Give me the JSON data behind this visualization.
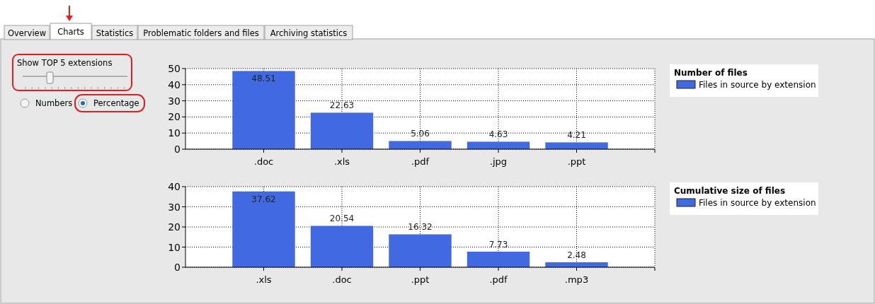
{
  "chart_data": [
    {
      "type": "other",
      "annotations": [
        "Overview",
        "Charts",
        "Statistics",
        "Problematic folders and files",
        "Archiving statistics",
        "Show TOP 5 extensions",
        "Numbers",
        "Percentage"
      ]
    },
    {
      "type": "bar",
      "legend_title": "Number of files",
      "categories": [
        ".doc",
        ".xls",
        ".pdf",
        ".jpg",
        ".ppt"
      ],
      "series": [
        {
          "name": "Files in source by extension",
          "color": "#4169e1",
          "values": [
            48.51,
            22.63,
            5.06,
            4.63,
            4.21
          ]
        }
      ],
      "ylim": [
        0,
        50
      ],
      "yticks": [
        0,
        10,
        20,
        30,
        40,
        50
      ],
      "grid": true,
      "legend": "right",
      "data_labels": true
    },
    {
      "type": "bar",
      "legend_title": "Cumulative size of files",
      "categories": [
        ".xls",
        ".doc",
        ".ppt",
        ".pdf",
        ".mp3"
      ],
      "series": [
        {
          "name": "Files in source by extension",
          "color": "#4169e1",
          "values": [
            37.62,
            20.54,
            16.32,
            7.73,
            2.48
          ]
        }
      ],
      "ylim": [
        0,
        40
      ],
      "yticks": [
        0,
        10,
        20,
        30,
        40
      ],
      "grid": true,
      "legend": "right",
      "data_labels": true
    }
  ]
}
